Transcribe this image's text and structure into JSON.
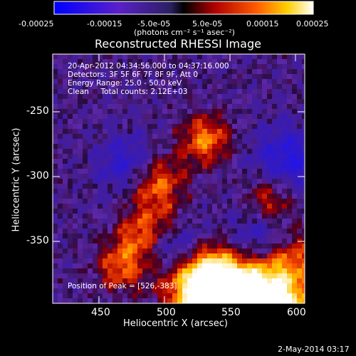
{
  "colorbar": {
    "tick_labels": [
      "-0.00025",
      "-0.00015",
      "-5.0e-05",
      "5.0e-05",
      "0.00015",
      "0.00025"
    ],
    "unit_label": "(photons cm⁻² s⁻¹ asec⁻²)"
  },
  "plot": {
    "title": "Reconstructed RHESSI Image",
    "xlabel": "Heliocentric X (arcsec)",
    "ylabel": "Heliocentric Y (arcsec)",
    "x_ticks": [
      "450",
      "500",
      "550",
      "600"
    ],
    "y_ticks": [
      "-250",
      "-300",
      "-350"
    ],
    "info_lines": [
      "20-Apr-2012 04:34:56.000 to 04:37:16.000",
      "Detectors: 3F 5F 6F 7F 8F 9F, Att 0",
      "Energy Range: 25.0 - 50.0 keV",
      "Clean     Total counts: 2.12E+03"
    ],
    "peak_label": "Position of Peak = [526,-383]",
    "footer_date": "2-May-2014 03:17"
  },
  "colors": {
    "background": "#000000",
    "text": "#ffffff"
  }
}
